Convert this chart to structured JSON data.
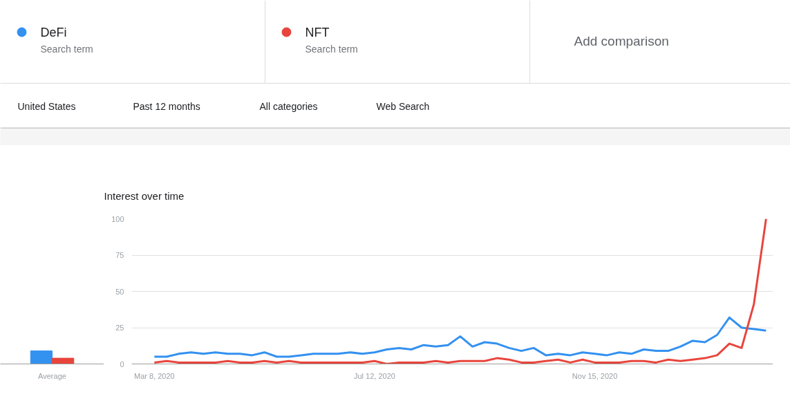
{
  "chart_data": [
    {
      "type": "line",
      "title": "Interest over time",
      "annotations": [
        "Search term",
        "Search term",
        "Add comparison",
        "United States",
        "Past 12 months",
        "All categories",
        "Web Search"
      ],
      "x": [
        "2020-03-08",
        "2020-03-15",
        "2020-03-22",
        "2020-03-29",
        "2020-04-05",
        "2020-04-12",
        "2020-04-19",
        "2020-04-26",
        "2020-05-03",
        "2020-05-10",
        "2020-05-17",
        "2020-05-24",
        "2020-05-31",
        "2020-06-07",
        "2020-06-14",
        "2020-06-21",
        "2020-06-28",
        "2020-07-05",
        "2020-07-12",
        "2020-07-19",
        "2020-07-26",
        "2020-08-02",
        "2020-08-09",
        "2020-08-16",
        "2020-08-23",
        "2020-08-30",
        "2020-09-06",
        "2020-09-13",
        "2020-09-20",
        "2020-09-27",
        "2020-10-04",
        "2020-10-11",
        "2020-10-18",
        "2020-10-25",
        "2020-11-01",
        "2020-11-08",
        "2020-11-15",
        "2020-11-22",
        "2020-11-29",
        "2020-12-06",
        "2020-12-13",
        "2020-12-20",
        "2020-12-27",
        "2021-01-03",
        "2021-01-10",
        "2021-01-17",
        "2021-01-24",
        "2021-01-31",
        "2021-02-07",
        "2021-02-14",
        "2021-02-21"
      ],
      "series": [
        {
          "name": "DeFi",
          "color": "#3391f0",
          "values": [
            5,
            5,
            7,
            8,
            7,
            8,
            7,
            7,
            6,
            8,
            5,
            5,
            6,
            7,
            7,
            7,
            8,
            7,
            8,
            10,
            11,
            10,
            13,
            12,
            13,
            19,
            12,
            15,
            14,
            11,
            9,
            11,
            6,
            7,
            6,
            8,
            7,
            6,
            8,
            7,
            10,
            9,
            9,
            12,
            16,
            15,
            20,
            32,
            25,
            24,
            23
          ]
        },
        {
          "name": "NFT",
          "color": "#e8453c",
          "values": [
            1,
            2,
            1,
            1,
            1,
            1,
            2,
            1,
            1,
            2,
            1,
            2,
            1,
            1,
            1,
            1,
            1,
            1,
            2,
            0,
            1,
            1,
            1,
            2,
            1,
            2,
            2,
            2,
            4,
            3,
            1,
            1,
            2,
            3,
            1,
            3,
            1,
            1,
            1,
            2,
            2,
            1,
            3,
            2,
            3,
            4,
            6,
            14,
            11,
            41,
            100
          ]
        }
      ],
      "xlim": [
        "2020-02-24",
        "2021-02-25"
      ],
      "xticks": [
        {
          "value": "2020-03-08",
          "label": "Mar 8, 2020"
        },
        {
          "value": "2020-07-12",
          "label": "Jul 12, 2020"
        },
        {
          "value": "2020-11-15",
          "label": "Nov 15, 2020"
        }
      ],
      "ylim": [
        0,
        100
      ],
      "yticks": [
        0,
        25,
        50,
        75,
        100
      ],
      "grid": "y",
      "legend": "top",
      "marker": "none",
      "line_style": "solid"
    },
    {
      "type": "bar",
      "categories": [
        "Average"
      ],
      "series": [
        {
          "color": "#3391f0",
          "values": [
            9
          ]
        },
        {
          "color": "#e8453c",
          "values": [
            4
          ]
        }
      ],
      "ylim": [
        0,
        100
      ],
      "yticks": [
        0,
        25,
        50,
        75,
        100
      ],
      "tick_labels": "x",
      "grid": false
    }
  ]
}
